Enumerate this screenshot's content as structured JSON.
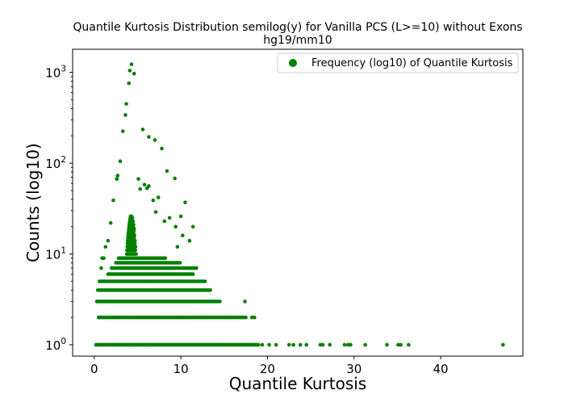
{
  "chart_data": {
    "type": "scatter",
    "title_line1": "Quantile Kurtosis Distribution semilog(y) for Vanilla PCS (L>=10) without Exons",
    "title_line2": "hg19/mm10",
    "xlabel": "Quantile Kurtosis",
    "ylabel": "Counts (log10)",
    "xlim": [
      -2.5,
      49.5
    ],
    "ylim": [
      0.75,
      1800
    ],
    "yscale": "log",
    "xticks": [
      0,
      10,
      20,
      30,
      40
    ],
    "xtick_labels": [
      "0",
      "10",
      "20",
      "30",
      "40"
    ],
    "yticks": [
      1,
      10,
      100,
      1000
    ],
    "ytick_labels": [
      "10^0",
      "10^1",
      "10^2",
      "10^3"
    ],
    "legend": {
      "label": "Frequency (log10) of Quantile Kurtosis",
      "position": "top-right"
    },
    "marker_color": "#008000",
    "series": [
      {
        "name": "Frequency (log10) of Quantile Kurtosis",
        "points": [
          [
            4.3,
            1230
          ],
          [
            4.1,
            1050
          ],
          [
            4.6,
            970
          ],
          [
            4.0,
            760
          ],
          [
            3.7,
            450
          ],
          [
            3.6,
            340
          ],
          [
            3.3,
            225
          ],
          [
            5.6,
            235
          ],
          [
            6.3,
            195
          ],
          [
            7.0,
            180
          ],
          [
            7.8,
            145
          ],
          [
            3.0,
            105
          ],
          [
            2.7,
            73
          ],
          [
            2.6,
            67
          ],
          [
            5.1,
            67
          ],
          [
            8.4,
            82
          ],
          [
            9.3,
            68
          ],
          [
            5.8,
            58
          ],
          [
            6.3,
            56
          ],
          [
            6.1,
            53
          ],
          [
            5.3,
            52
          ],
          [
            2.2,
            39
          ],
          [
            6.8,
            39
          ],
          [
            7.4,
            42
          ],
          [
            10.5,
            37
          ],
          [
            8.1,
            23
          ],
          [
            8.7,
            25
          ],
          [
            10.0,
            26
          ],
          [
            11.4,
            20
          ],
          [
            1.9,
            22
          ],
          [
            7.1,
            29
          ],
          [
            9.4,
            20
          ],
          [
            10.2,
            16
          ],
          [
            11.0,
            14
          ],
          [
            9.6,
            12
          ],
          [
            1.6,
            14
          ],
          [
            1.3,
            12
          ],
          [
            0.9,
            9
          ],
          [
            1.1,
            9
          ],
          [
            0.8,
            7
          ]
        ]
      }
    ],
    "column_bands": [
      {
        "count": 1,
        "x_from": 0.2,
        "x_to": 19.0,
        "step": 0.15
      },
      {
        "count": 2,
        "x_from": 0.5,
        "x_to": 17.5,
        "step": 0.2
      },
      {
        "count": 3,
        "x_from": 0.3,
        "x_to": 14.5,
        "step": 0.2
      },
      {
        "count": 4,
        "x_from": 0.4,
        "x_to": 13.5,
        "step": 0.2
      },
      {
        "count": 5,
        "x_from": 0.6,
        "x_to": 12.8,
        "step": 0.2
      },
      {
        "count": 6,
        "x_from": 1.6,
        "x_to": 11.5,
        "step": 0.2
      },
      {
        "count": 7,
        "x_from": 2.0,
        "x_to": 11.8,
        "step": 0.2
      },
      {
        "count": 8,
        "x_from": 2.5,
        "x_to": 10.0,
        "step": 0.2
      },
      {
        "count": 9,
        "x_from": 2.8,
        "x_to": 8.2,
        "step": 0.2
      }
    ],
    "extra_singletons": [
      [
        17.4,
        3
      ],
      [
        18.5,
        2
      ],
      [
        18.2,
        2
      ],
      [
        19.4,
        1
      ],
      [
        20.2,
        1
      ],
      [
        21.0,
        1
      ],
      [
        22.5,
        1
      ],
      [
        23.0,
        1
      ],
      [
        23.8,
        1
      ],
      [
        24.5,
        1
      ],
      [
        26.1,
        1
      ],
      [
        26.4,
        1
      ],
      [
        27.2,
        1
      ],
      [
        28.9,
        1
      ],
      [
        29.3,
        1
      ],
      [
        29.6,
        1
      ],
      [
        31.3,
        1
      ],
      [
        33.8,
        1
      ],
      [
        35.1,
        1
      ],
      [
        35.4,
        1
      ],
      [
        36.3,
        1
      ],
      [
        47.2,
        1
      ]
    ],
    "peak": {
      "x_center": 4.3,
      "x_half_width": 0.55,
      "count_min": 10,
      "count_max": 26
    }
  }
}
